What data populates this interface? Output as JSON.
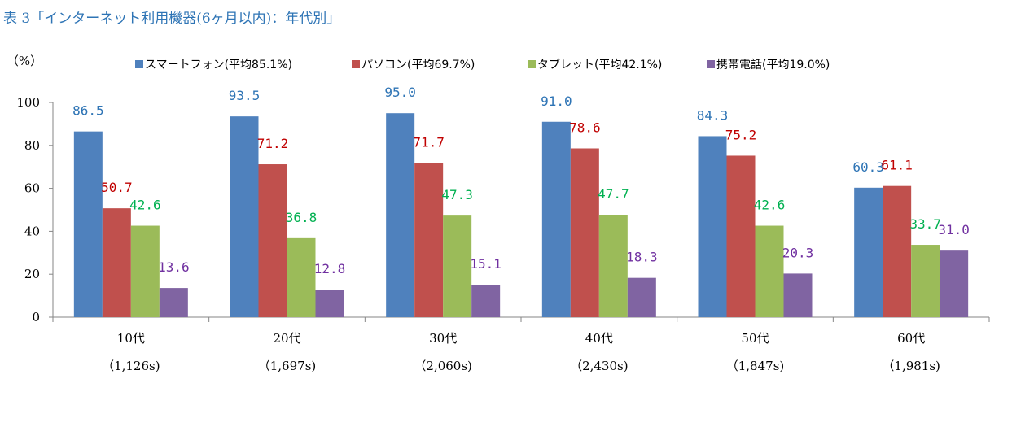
{
  "chart_data": {
    "type": "bar",
    "title": "表 3「インターネット利用機器(6ヶ月以内)：年代別」",
    "ylabel": "（%）",
    "xlabel": "",
    "ylim": [
      0,
      100
    ],
    "yticks": [
      0,
      20,
      40,
      60,
      80,
      100
    ],
    "grid": false,
    "legend_position": "top",
    "categories": [
      "10代",
      "20代",
      "30代",
      "40代",
      "50代",
      "60代"
    ],
    "category_samples": [
      "（1,126s)",
      "（1,697s)",
      "（2,060s)",
      "（2,430s)",
      "（1,847s)",
      "（1,981s)"
    ],
    "series": [
      {
        "name": "スマートフォン(平均85.1%)",
        "color": "#4f81bd",
        "label_color": "#2e74b5",
        "values": [
          86.5,
          93.5,
          95.0,
          91.0,
          84.3,
          60.3
        ],
        "labels": [
          "86.5",
          "93.5",
          "95.0",
          "91.0",
          "84.3",
          "60.3"
        ]
      },
      {
        "name": "パソコン(平均69.7%)",
        "color": "#c0504d",
        "label_color": "#c00000",
        "values": [
          50.7,
          71.2,
          71.7,
          78.6,
          75.2,
          61.1
        ],
        "labels": [
          "50.7",
          "71.2",
          "71.7",
          "78.6",
          "75.2",
          "61.1"
        ]
      },
      {
        "name": "タブレット(平均42.1%)",
        "color": "#9bbb59",
        "label_color": "#00b050",
        "values": [
          42.6,
          36.8,
          47.3,
          47.7,
          42.6,
          33.7
        ],
        "labels": [
          "42.6",
          "36.8",
          "47.3",
          "47.7",
          "42.6",
          "33.7"
        ]
      },
      {
        "name": "携帯電話(平均19.0%)",
        "color": "#8064a2",
        "label_color": "#7030a0",
        "values": [
          13.6,
          12.8,
          15.1,
          18.3,
          20.3,
          31.0
        ],
        "labels": [
          "13.6",
          "12.8",
          "15.1",
          "18.3",
          "20.3",
          "31.0"
        ]
      }
    ]
  }
}
